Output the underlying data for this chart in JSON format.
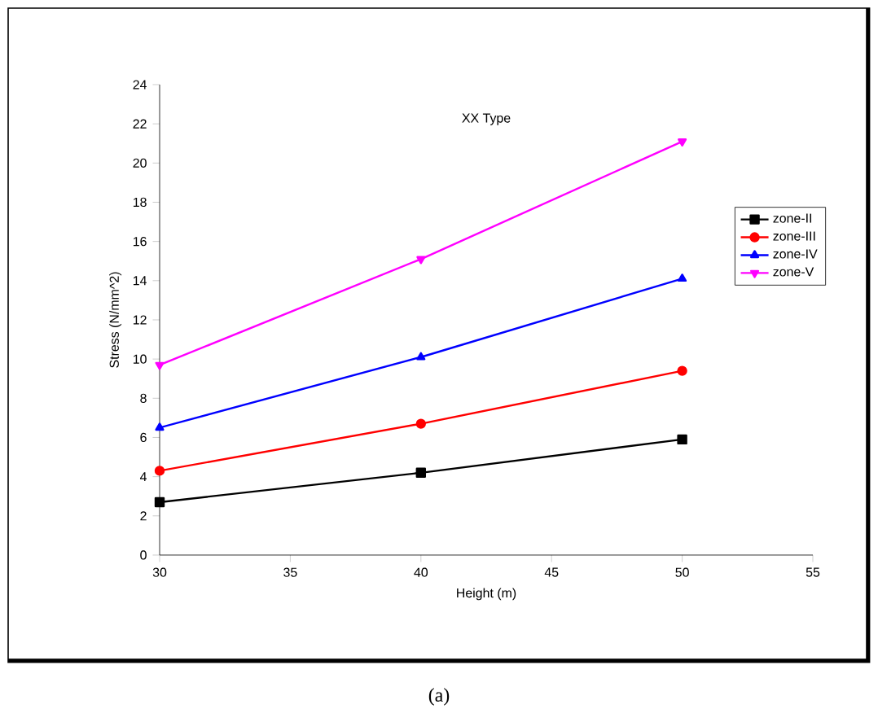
{
  "chart_data": {
    "type": "line",
    "title": "XX Type",
    "xlabel": "Height (m)",
    "ylabel": "Stress (N/mm^2)",
    "x": [
      30,
      40,
      50
    ],
    "series": [
      {
        "name": "zone-II",
        "color": "#000000",
        "marker": "square",
        "values": [
          2.7,
          4.2,
          5.9
        ]
      },
      {
        "name": "zone-III",
        "color": "#ff0000",
        "marker": "circle",
        "values": [
          4.3,
          6.7,
          9.4
        ]
      },
      {
        "name": "zone-IV",
        "color": "#0000ff",
        "marker": "triangle",
        "values": [
          6.5,
          10.1,
          14.1
        ]
      },
      {
        "name": "zone-V",
        "color": "#ff00ff",
        "marker": "triangle down",
        "values": [
          9.7,
          15.1,
          21.1
        ]
      }
    ],
    "xlim": [
      30,
      55
    ],
    "xticks": [
      30,
      35,
      40,
      45,
      50,
      55
    ],
    "ylim": [
      0,
      24
    ],
    "yticks": [
      0,
      2,
      4,
      6,
      8,
      10,
      12,
      14,
      16,
      18,
      20,
      22,
      24
    ],
    "legend": "top right",
    "grid": false,
    "annotations": [
      "(a)"
    ]
  }
}
